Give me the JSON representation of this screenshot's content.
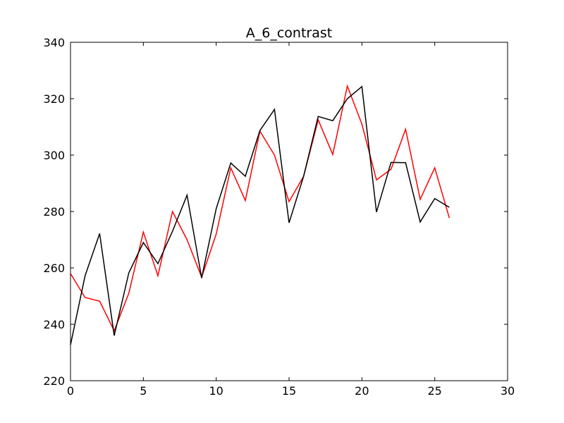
{
  "chart_data": {
    "type": "line",
    "title": "A_6_contrast",
    "xlabel": "",
    "ylabel": "",
    "xlim": [
      0,
      30
    ],
    "ylim": [
      220,
      340
    ],
    "xticks": [
      0,
      5,
      10,
      15,
      20,
      25,
      30
    ],
    "yticks": [
      220,
      240,
      260,
      280,
      300,
      320,
      340
    ],
    "grid": false,
    "x": [
      0,
      1,
      2,
      3,
      4,
      5,
      6,
      7,
      8,
      9,
      10,
      11,
      12,
      13,
      14,
      15,
      16,
      17,
      18,
      19,
      20,
      21,
      22,
      23,
      24,
      25,
      26
    ],
    "series": [
      {
        "color": "#ff0000",
        "values": [
          258,
          249.5,
          248.2,
          237.7,
          251,
          272.7,
          257.2,
          280,
          270,
          256.7,
          272,
          295.5,
          283.9,
          308.5,
          300,
          283.5,
          292.5,
          312.5,
          300.2,
          324.5,
          311,
          291.2,
          295,
          309.2,
          284.3,
          295.5,
          277.7
        ]
      },
      {
        "color": "#000000",
        "values": [
          232.7,
          257.2,
          272.2,
          236,
          258.2,
          269,
          261.5,
          273,
          285.8,
          256.4,
          281,
          297.2,
          292.5,
          308.7,
          316.2,
          276,
          292.5,
          313.7,
          312.2,
          320,
          324.3,
          279.8,
          297.4,
          297.3,
          276.3,
          284.6,
          281.5
        ]
      }
    ]
  }
}
